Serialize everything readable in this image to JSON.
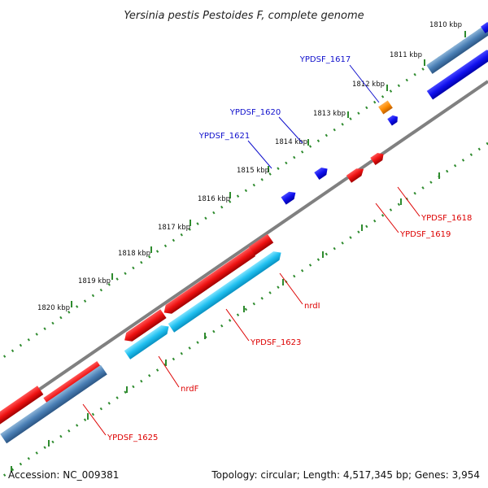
{
  "title": "Yersinia pestis Pestoides F, complete genome",
  "footer": {
    "accession": "Accession: NC_009381",
    "summary": "Topology: circular; Length: 4,517,345 bp; Genes: 3,954"
  },
  "colors": {
    "backbone": "#808080",
    "tick": "#2e8b2e",
    "red": "#ee1111",
    "blue": "#1010ee",
    "orange": "#ff8c00",
    "lightblue": "#20c0f0",
    "steel": "#4a7fb5",
    "label_blue": "#1010cc",
    "label_red": "#dd0000"
  },
  "axis_labels": [
    "1810 kbp",
    "1811 kbp",
    "1812 kbp",
    "1813 kbp",
    "1814 kbp",
    "1815 kbp",
    "1816 kbp",
    "1817 kbp",
    "1818 kbp",
    "1819 kbp",
    "1820 kbp"
  ],
  "gene_labels": [
    "YPDSF_1617",
    "YPDSF_1620",
    "YPDSF_1621",
    "YPDSF_1618",
    "YPDSF_1619",
    "nrdI",
    "YPDSF_1623",
    "nrdF",
    "YPDSF_1625"
  ]
}
